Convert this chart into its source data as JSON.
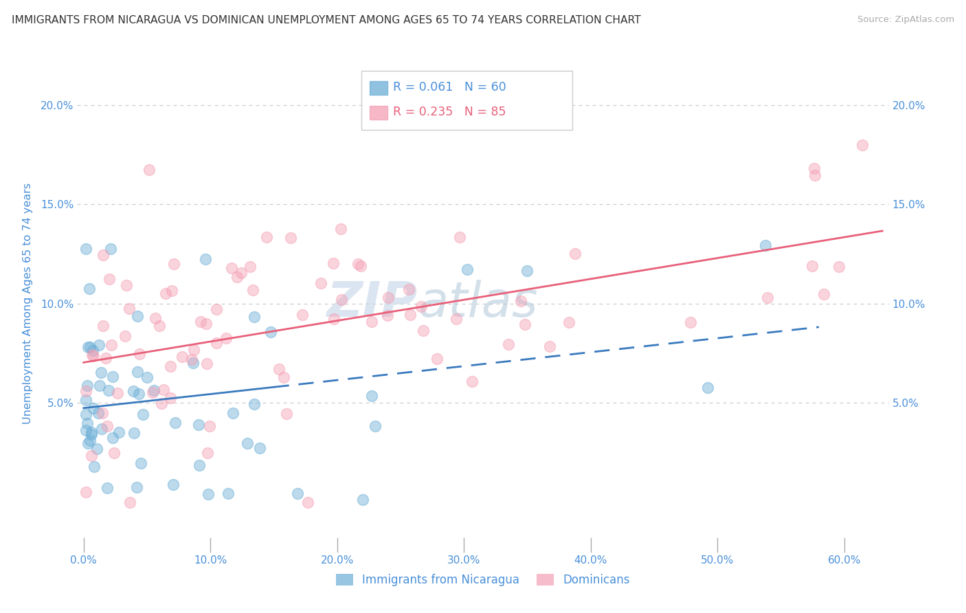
{
  "title": "IMMIGRANTS FROM NICARAGUA VS DOMINICAN UNEMPLOYMENT AMONG AGES 65 TO 74 YEARS CORRELATION CHART",
  "source": "Source: ZipAtlas.com",
  "ylabel": "Unemployment Among Ages 65 to 74 years",
  "legend_label_1": "Immigrants from Nicaragua",
  "legend_label_2": "Dominicans",
  "r1": 0.061,
  "n1": 60,
  "r2": 0.235,
  "n2": 85,
  "color_blue": "#6baed6",
  "color_pink": "#f4a0b5",
  "color_blue_line": "#3a7abf",
  "color_pink_line": "#e8607a",
  "color_text": "#4a90d9",
  "watermark1": "ZIP",
  "watermark2": "atlas",
  "xlim_min": -0.005,
  "xlim_max": 0.635,
  "ylim_min": -0.025,
  "ylim_max": 0.225
}
